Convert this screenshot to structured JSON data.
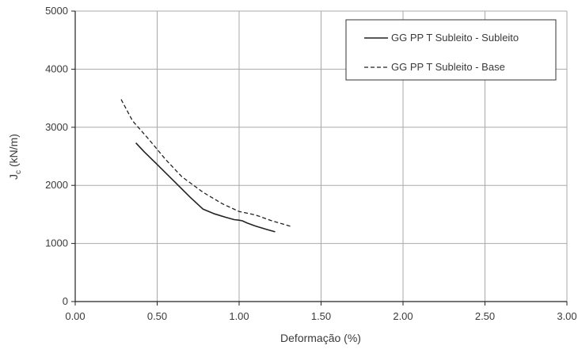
{
  "chart_data": {
    "type": "line",
    "title": "",
    "xlabel": "Deformação (%)",
    "ylabel_main": "J",
    "ylabel_sub": "c",
    "ylabel_rest": " (kN/m)",
    "xlim": [
      0,
      3
    ],
    "ylim": [
      0,
      5000
    ],
    "x_ticks": [
      0,
      0.5,
      1.0,
      1.5,
      2.0,
      2.5,
      3.0
    ],
    "x_tick_labels": [
      "0.00",
      "0.50",
      "1.00",
      "1.50",
      "2.00",
      "2.50",
      "3.00"
    ],
    "y_ticks": [
      0,
      1000,
      2000,
      3000,
      4000,
      5000
    ],
    "y_tick_labels": [
      "0",
      "1000",
      "2000",
      "3000",
      "4000",
      "5000"
    ],
    "grid": true,
    "legend_position": "top-right",
    "series": [
      {
        "name": "GG PP T Subleito - Subleito",
        "style": "solid",
        "color": "#222222",
        "x": [
          0.37,
          0.42,
          0.5,
          0.6,
          0.7,
          0.78,
          0.85,
          0.92,
          0.97,
          1.0,
          1.02,
          1.05,
          1.1,
          1.17,
          1.22
        ],
        "y": [
          2730,
          2580,
          2360,
          2080,
          1800,
          1590,
          1510,
          1450,
          1410,
          1400,
          1390,
          1350,
          1300,
          1240,
          1200
        ]
      },
      {
        "name": "GG PP T Subleito - Base",
        "style": "dashed",
        "color": "#222222",
        "x": [
          0.28,
          0.35,
          0.45,
          0.55,
          0.65,
          0.78,
          0.9,
          1.0,
          1.1,
          1.2,
          1.32
        ],
        "y": [
          3480,
          3110,
          2790,
          2450,
          2150,
          1880,
          1680,
          1550,
          1490,
          1390,
          1290
        ]
      }
    ]
  }
}
